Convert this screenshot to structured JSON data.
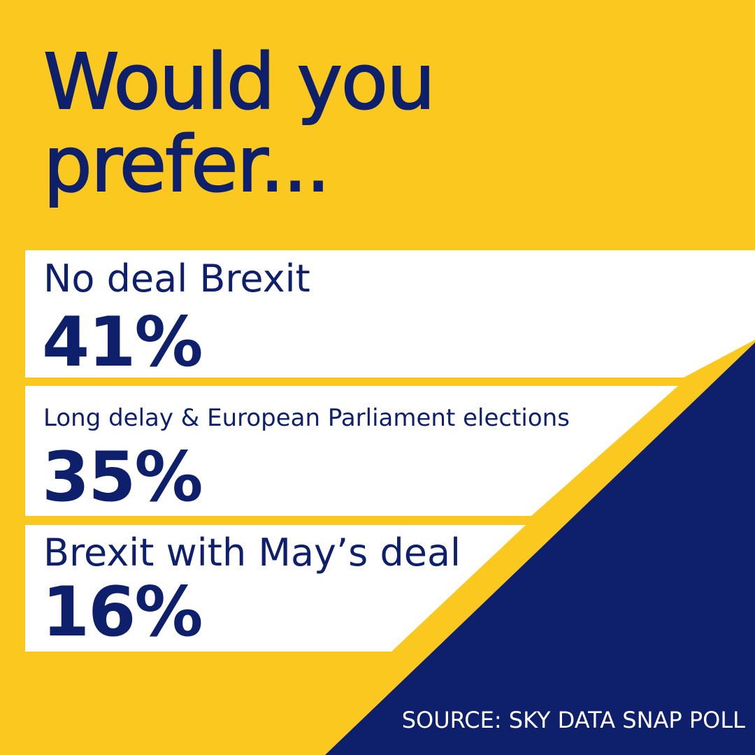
{
  "chart_data": {
    "type": "table",
    "title": "Would you prefer...",
    "title_lines": [
      "Would you",
      "prefer..."
    ],
    "categories": [
      "No deal Brexit",
      "Long delay & European Parliament elections",
      "Brexit with May’s deal"
    ],
    "values": [
      41,
      35,
      16
    ],
    "value_labels": [
      "41%",
      "35%",
      "16%"
    ],
    "source": "SOURCE: SKY DATA SNAP POLL"
  },
  "colors": {
    "background": "#FBC81F",
    "navy": "#0E1F6B",
    "panel": "#FFFFFF"
  }
}
